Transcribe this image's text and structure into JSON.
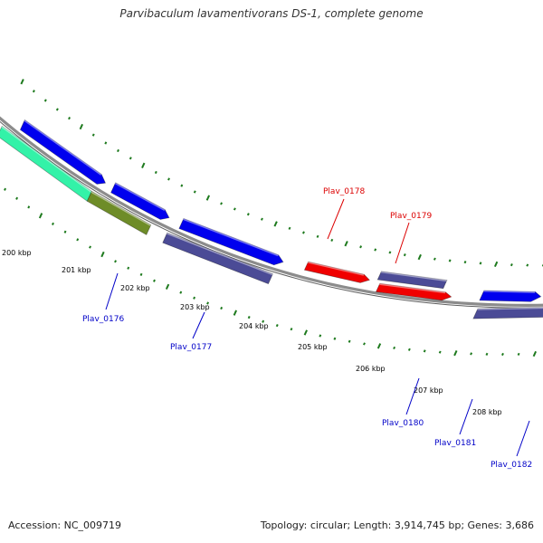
{
  "title": "Parvibaculum lavamentivorans DS-1, complete genome",
  "accession": "Accession: NC_009719",
  "summary": "Topology: circular; Length: 3,914,745 bp; Genes: 3,686",
  "colors": {
    "backbone": "#8c8c8c",
    "tick": "#1e7a1e",
    "blue": "#0000ee",
    "slate": "#4b4b96",
    "red": "#f00000",
    "cyan": "#33f2a8",
    "olive": "#6e8c28",
    "label_blue": "#0000c8",
    "label_red": "#dc0000"
  },
  "kbp_labels": [
    "200 kbp",
    "201 kbp",
    "202 kbp",
    "203 kbp",
    "204 kbp",
    "205 kbp",
    "206 kbp",
    "207 kbp",
    "208 kbp"
  ],
  "gene_labels": [
    {
      "text": "Plav_0176",
      "color": "blue"
    },
    {
      "text": "Plav_0177",
      "color": "blue"
    },
    {
      "text": "Plav_0178",
      "color": "red"
    },
    {
      "text": "Plav_0179",
      "color": "red"
    },
    {
      "text": "Plav_0180",
      "color": "blue"
    },
    {
      "text": "Plav_0181",
      "color": "blue"
    },
    {
      "text": "Plav_0182",
      "color": "blue"
    }
  ]
}
